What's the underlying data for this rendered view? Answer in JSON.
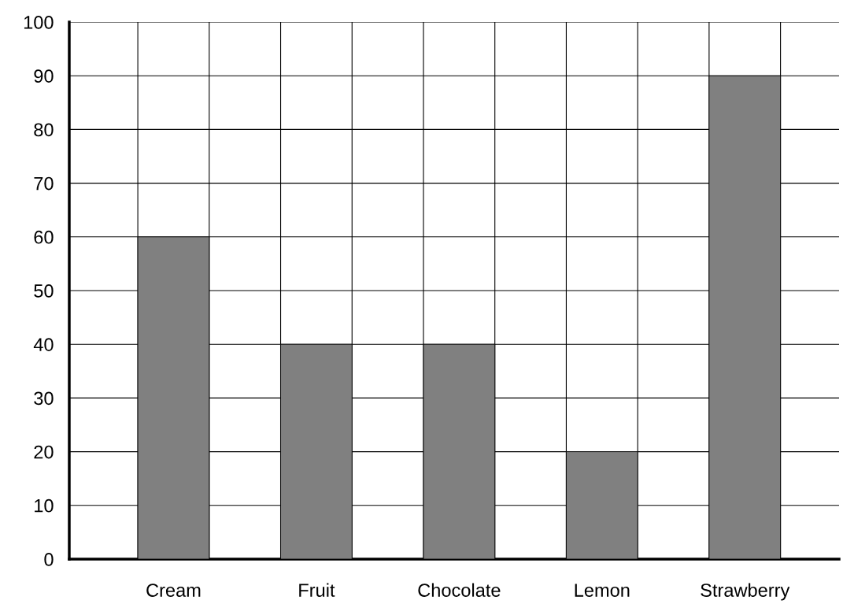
{
  "chart_data": {
    "type": "bar",
    "categories": [
      "Cream",
      "Fruit",
      "Chocolate",
      "Lemon",
      "Strawberry"
    ],
    "values": [
      60,
      40,
      40,
      20,
      90
    ],
    "color": "#808080",
    "ylim": [
      0,
      100
    ],
    "yticks": [
      0,
      10,
      20,
      30,
      40,
      50,
      60,
      70,
      80,
      90,
      100
    ],
    "grid": true
  }
}
